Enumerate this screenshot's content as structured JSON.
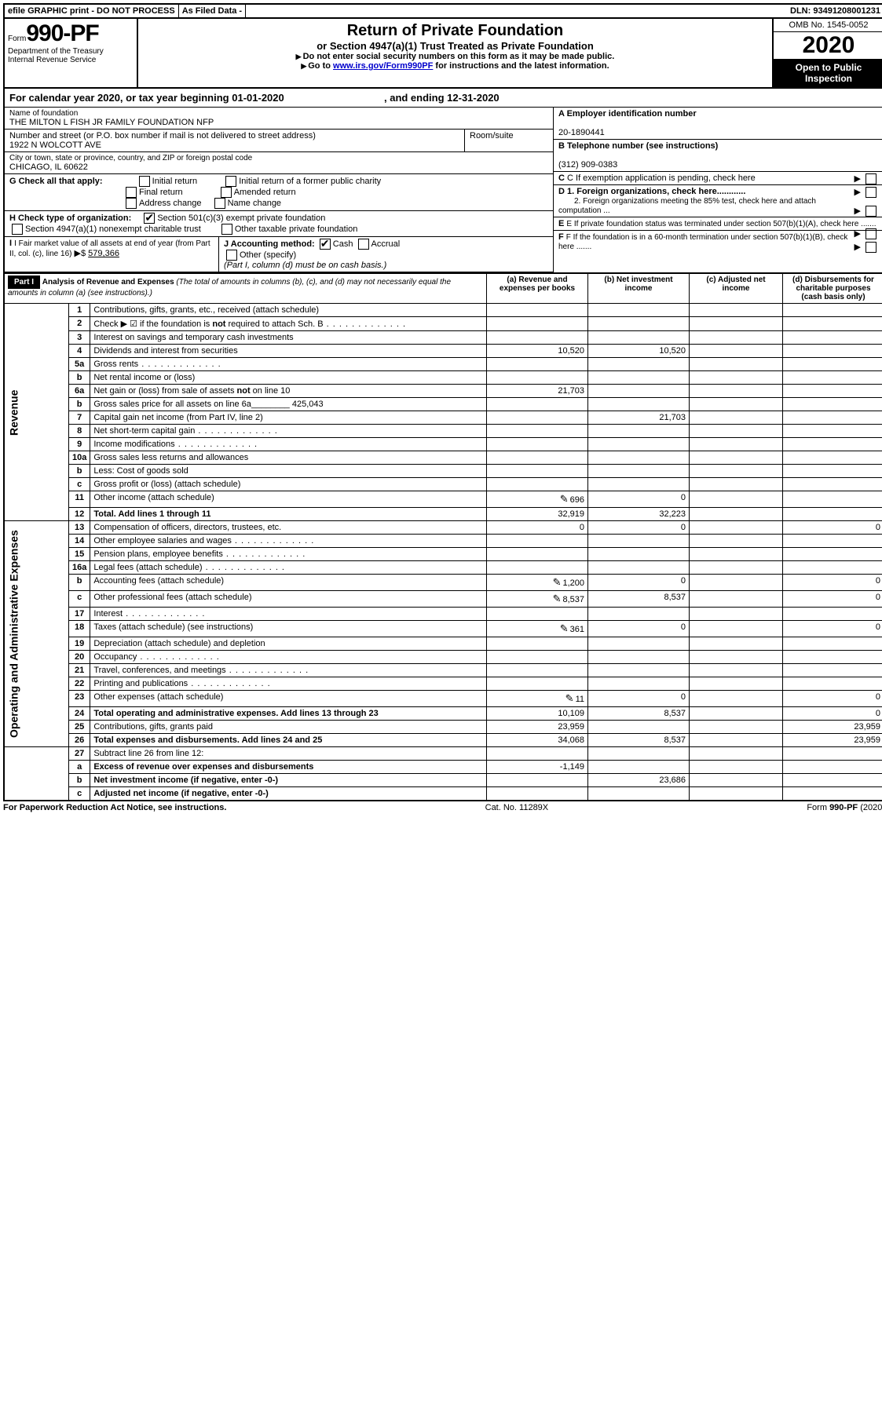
{
  "topbar": {
    "efile": "efile GRAPHIC print - DO NOT PROCESS",
    "asfiled": "As Filed Data -",
    "dln_lbl": "DLN:",
    "dln": "93491208001231"
  },
  "header": {
    "form_prefix": "Form",
    "form_no": "990-PF",
    "dept": "Department of the Treasury",
    "irs": "Internal Revenue Service",
    "title": "Return of Private Foundation",
    "subtitle": "or Section 4947(a)(1) Trust Treated as Private Foundation",
    "note1": "Do not enter social security numbers on this form as it may be made public.",
    "note2_pre": "Go to ",
    "note2_link": "www.irs.gov/Form990PF",
    "note2_post": " for instructions and the latest information.",
    "omb": "OMB No. 1545-0052",
    "year": "2020",
    "open": "Open to Public Inspection"
  },
  "cal": {
    "text_a": "For calendar year 2020, or tax year beginning ",
    "date_a": "01-01-2020",
    "text_b": ", and ending ",
    "date_b": "12-31-2020"
  },
  "entity": {
    "name_lbl": "Name of foundation",
    "name": "THE MILTON L FISH JR FAMILY FOUNDATION NFP",
    "addr_lbl": "Number and street (or P.O. box number if mail is not delivered to street address)",
    "room_lbl": "Room/suite",
    "addr": "1922 N WOLCOTT AVE",
    "city_lbl": "City or town, state or province, country, and ZIP or foreign postal code",
    "city": "CHICAGO, IL  60622",
    "ein_lbl": "A Employer identification number",
    "ein": "20-1890441",
    "phone_lbl": "B Telephone number (see instructions)",
    "phone": "(312) 909-0383"
  },
  "boxG": {
    "label": "G Check all that apply:",
    "opts": [
      "Initial return",
      "Initial return of a former public charity",
      "Final return",
      "Amended return",
      "Address change",
      "Name change"
    ]
  },
  "boxH": {
    "label": "H Check type of organization:",
    "opt1": "Section 501(c)(3) exempt private foundation",
    "opt2": "Section 4947(a)(1) nonexempt charitable trust",
    "opt3": "Other taxable private foundation"
  },
  "boxI": {
    "label": "I Fair market value of all assets at end of year (from Part II, col. (c), line 16)",
    "arrow": "▶$",
    "val": "579,366"
  },
  "boxJ": {
    "label": "J Accounting method:",
    "cash": "Cash",
    "accrual": "Accrual",
    "other": "Other (specify)",
    "note": "(Part I, column (d) must be on cash basis.)"
  },
  "boxC": "C If exemption application is pending, check here",
  "boxD": {
    "d1": "D 1. Foreign organizations, check here............",
    "d2": "2. Foreign organizations meeting the 85% test, check here and attach computation ..."
  },
  "boxE": "E If private foundation status was terminated under section 507(b)(1)(A), check here .......",
  "boxF": "F If the foundation is in a 60-month termination under section 507(b)(1)(B), check here .......",
  "part1": {
    "label": "Part I",
    "title": "Analysis of Revenue and Expenses",
    "title_sub": " (The total of amounts in columns (b), (c), and (d) may not necessarily equal the amounts in column (a) (see instructions).)",
    "cols": {
      "a": "(a) Revenue and expenses per books",
      "b": "(b) Net investment income",
      "c": "(c) Adjusted net income",
      "d": "(d) Disbursements for charitable purposes (cash basis only)"
    }
  },
  "sections": {
    "revenue": "Revenue",
    "expenses": "Operating and Administrative Expenses"
  },
  "rows": [
    {
      "n": "1",
      "d": "Contributions, gifts, grants, etc., received (attach schedule)"
    },
    {
      "n": "2",
      "d": "Check ▶ ☑ if the foundation is not required to attach Sch. B",
      "dots": true
    },
    {
      "n": "3",
      "d": "Interest on savings and temporary cash investments"
    },
    {
      "n": "4",
      "d": "Dividends and interest from securities",
      "a": "10,520",
      "b": "10,520"
    },
    {
      "n": "5a",
      "d": "Gross rents",
      "dots": true
    },
    {
      "n": "b",
      "d": "Net rental income or (loss)"
    },
    {
      "n": "6a",
      "d": "Net gain or (loss) from sale of assets not on line 10",
      "a": "21,703"
    },
    {
      "n": "b",
      "d": "Gross sales price for all assets on line 6a________ 425,043"
    },
    {
      "n": "7",
      "d": "Capital gain net income (from Part IV, line 2)",
      "b": "21,703"
    },
    {
      "n": "8",
      "d": "Net short-term capital gain",
      "dots": true
    },
    {
      "n": "9",
      "d": "Income modifications",
      "dots": true
    },
    {
      "n": "10a",
      "d": "Gross sales less returns and allowances"
    },
    {
      "n": "b",
      "d": "Less: Cost of goods sold"
    },
    {
      "n": "c",
      "d": "Gross profit or (loss) (attach schedule)"
    },
    {
      "n": "11",
      "d": "Other income (attach schedule)",
      "icon": true,
      "a": "696",
      "b": "0"
    },
    {
      "n": "12",
      "d": "Total. Add lines 1 through 11",
      "bold": true,
      "a": "32,919",
      "b": "32,223"
    }
  ],
  "exp_rows": [
    {
      "n": "13",
      "d": "Compensation of officers, directors, trustees, etc.",
      "a": "0",
      "b": "0",
      "dcol": "0"
    },
    {
      "n": "14",
      "d": "Other employee salaries and wages",
      "dots": true
    },
    {
      "n": "15",
      "d": "Pension plans, employee benefits",
      "dots": true
    },
    {
      "n": "16a",
      "d": "Legal fees (attach schedule)",
      "dots": true
    },
    {
      "n": "b",
      "d": "Accounting fees (attach schedule)",
      "icon": true,
      "a": "1,200",
      "b": "0",
      "dcol": "0"
    },
    {
      "n": "c",
      "d": "Other professional fees (attach schedule)",
      "icon": true,
      "a": "8,537",
      "b": "8,537",
      "dcol": "0"
    },
    {
      "n": "17",
      "d": "Interest",
      "dots": true
    },
    {
      "n": "18",
      "d": "Taxes (attach schedule) (see instructions)",
      "icon": true,
      "a": "361",
      "b": "0",
      "dcol": "0"
    },
    {
      "n": "19",
      "d": "Depreciation (attach schedule) and depletion"
    },
    {
      "n": "20",
      "d": "Occupancy",
      "dots": true
    },
    {
      "n": "21",
      "d": "Travel, conferences, and meetings",
      "dots": true
    },
    {
      "n": "22",
      "d": "Printing and publications",
      "dots": true
    },
    {
      "n": "23",
      "d": "Other expenses (attach schedule)",
      "icon": true,
      "a": "11",
      "b": "0",
      "dcol": "0"
    },
    {
      "n": "24",
      "d": "Total operating and administrative expenses. Add lines 13 through 23",
      "bold": true,
      "a": "10,109",
      "b": "8,537",
      "dcol": "0"
    },
    {
      "n": "25",
      "d": "Contributions, gifts, grants paid",
      "a": "23,959",
      "dcol": "23,959"
    },
    {
      "n": "26",
      "d": "Total expenses and disbursements. Add lines 24 and 25",
      "bold": true,
      "a": "34,068",
      "b": "8,537",
      "dcol": "23,959"
    }
  ],
  "bottom_rows": [
    {
      "n": "27",
      "d": "Subtract line 26 from line 12:"
    },
    {
      "n": "a",
      "d": "Excess of revenue over expenses and disbursements",
      "bold": true,
      "a": "-1,149"
    },
    {
      "n": "b",
      "d": "Net investment income (if negative, enter -0-)",
      "bold": true,
      "b": "23,686"
    },
    {
      "n": "c",
      "d": "Adjusted net income (if negative, enter -0-)",
      "bold": true
    }
  ],
  "footer": {
    "left": "For Paperwork Reduction Act Notice, see instructions.",
    "mid": "Cat. No. 11289X",
    "right": "Form 990-PF (2020)"
  }
}
